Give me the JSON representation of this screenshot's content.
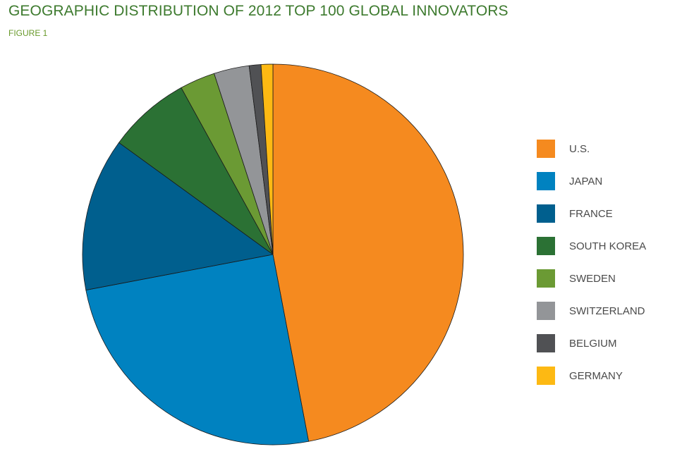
{
  "header": {
    "title": "GEOGRAPHIC DISTRIBUTION OF 2012 TOP 100 GLOBAL INNOVATORS",
    "subtitle": "FIGURE 1"
  },
  "chart_data": {
    "type": "pie",
    "title": "GEOGRAPHIC DISTRIBUTION OF 2012 TOP 100 GLOBAL INNOVATORS",
    "subtitle": "FIGURE 1",
    "legend_position": "right",
    "start_angle": "12 o'clock",
    "direction": "clockwise",
    "slices": [
      {
        "label": "U.S.",
        "value": 47,
        "color": "#f58a1f"
      },
      {
        "label": "JAPAN",
        "value": 25,
        "color": "#0082c0"
      },
      {
        "label": "FRANCE",
        "value": 13,
        "color": "#005f8e"
      },
      {
        "label": "SOUTH KOREA",
        "value": 7,
        "color": "#2b7134"
      },
      {
        "label": "SWEDEN",
        "value": 3,
        "color": "#6b9a34"
      },
      {
        "label": "SWITZERLAND",
        "value": 3,
        "color": "#939598"
      },
      {
        "label": "BELGIUM",
        "value": 1,
        "color": "#505154"
      },
      {
        "label": "GERMANY",
        "value": 1,
        "color": "#fdb913"
      }
    ]
  }
}
